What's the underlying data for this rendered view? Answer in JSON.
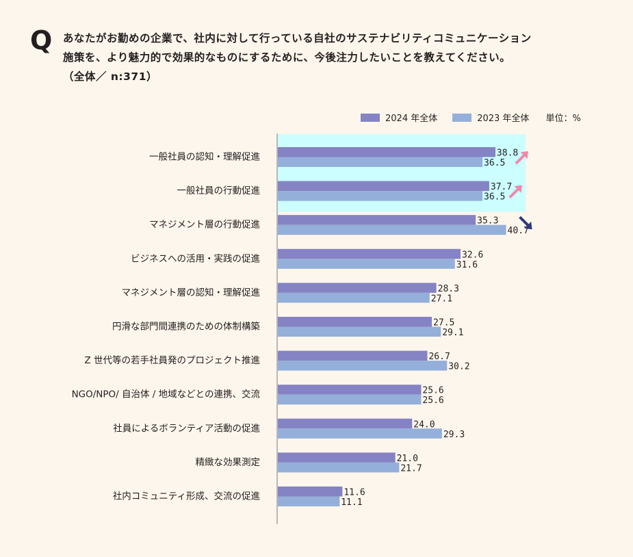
{
  "question": {
    "mark": "Q",
    "line1": "あなたがお勤めの企業で、社内に対して行っている自社のサステナビリティコミュニケーション",
    "line2": "施策を、より魅力的で効果的なものにするために、今後注力したいことを教えてください。",
    "line3": "（全体／ n:371）"
  },
  "legend": {
    "s2024": "2024 年全体",
    "s2023": "2023 年全体",
    "unit": "単位：%"
  },
  "colors": {
    "s2024": "#8583c4",
    "s2023": "#94afd9",
    "highlight": "#ccfdff",
    "arrow_up": "#ee8aa9",
    "arrow_down": "#2e3b7a",
    "axis": "#b8b8b8"
  },
  "chart_data": {
    "type": "bar",
    "orientation": "horizontal",
    "unit": "%",
    "categories": [
      "一般社員の認知・理解促進",
      "一般社員の行動促進",
      "マネジメント層の行動促進",
      "ビジネスへの活用・実践の促進",
      "マネジメント層の認知・理解促進",
      "円滑な部門間連携のための体制構築",
      "Z 世代等の若手社員発のプロジェクト推進",
      "NGO/NPO/ 自治体 / 地域などとの連携、交流",
      "社員によるボランティア活動の促進",
      "精緻な効果測定",
      "社内コミュニティ形成、交流の促進"
    ],
    "series": [
      {
        "name": "2024 年全体",
        "values": [
          "38.8",
          "37.7",
          "35.3",
          "32.6",
          "28.3",
          "27.5",
          "26.7",
          "25.6",
          "24.0",
          "21.0",
          "11.6"
        ]
      },
      {
        "name": "2023 年全体",
        "values": [
          "36.5",
          "36.5",
          "40.7",
          "31.6",
          "27.1",
          "29.1",
          "30.2",
          "25.6",
          "29.3",
          "21.7",
          "11.1"
        ]
      }
    ],
    "xlim": [
      0,
      50
    ],
    "highlighted_categories": [
      0,
      1
    ],
    "trend_arrows": [
      {
        "category": 0,
        "direction": "up"
      },
      {
        "category": 1,
        "direction": "up"
      },
      {
        "category": 2,
        "direction": "down"
      }
    ]
  }
}
